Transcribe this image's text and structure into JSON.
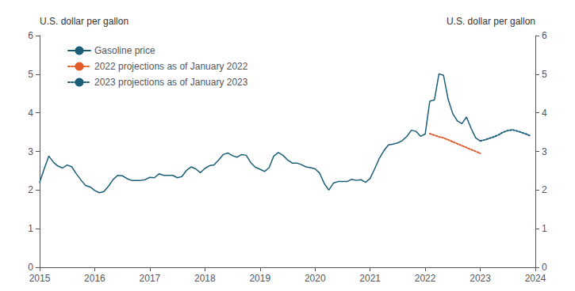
{
  "chart_data": {
    "type": "line",
    "ylabel": "U.S. dollar per gallon",
    "y2label": "U.S. dollar per gallon",
    "xlim": [
      2015.0,
      2024.0
    ],
    "xticks": [
      2015,
      2016,
      2017,
      2018,
      2019,
      2020,
      2021,
      2022,
      2023,
      2024
    ],
    "ylim": [
      0,
      6
    ],
    "yticks": [
      0,
      1,
      2,
      3,
      4,
      5,
      6
    ],
    "y2lim": [
      0,
      6
    ],
    "y2ticks": [
      0,
      1,
      2,
      3,
      4,
      5,
      6
    ],
    "grid": false,
    "legend": "upper left",
    "series": [
      {
        "name": "Gasoline price",
        "color": "#1a5e78",
        "line_style": "solid",
        "x": [
          2015.0,
          2015.083,
          2015.167,
          2015.25,
          2015.333,
          2015.417,
          2015.5,
          2015.583,
          2015.667,
          2015.75,
          2015.833,
          2015.917,
          2016.0,
          2016.083,
          2016.167,
          2016.25,
          2016.333,
          2016.417,
          2016.5,
          2016.583,
          2016.667,
          2016.75,
          2016.833,
          2016.917,
          2017.0,
          2017.083,
          2017.167,
          2017.25,
          2017.333,
          2017.417,
          2017.5,
          2017.583,
          2017.667,
          2017.75,
          2017.833,
          2017.917,
          2018.0,
          2018.083,
          2018.167,
          2018.25,
          2018.333,
          2018.417,
          2018.5,
          2018.583,
          2018.667,
          2018.75,
          2018.833,
          2018.917,
          2019.0,
          2019.083,
          2019.167,
          2019.25,
          2019.333,
          2019.417,
          2019.5,
          2019.583,
          2019.667,
          2019.75,
          2019.833,
          2019.917,
          2020.0,
          2020.083,
          2020.167,
          2020.25,
          2020.333,
          2020.417,
          2020.5,
          2020.583,
          2020.667,
          2020.75,
          2020.833,
          2020.917,
          2021.0,
          2021.083,
          2021.167,
          2021.25,
          2021.333,
          2021.417,
          2021.5,
          2021.583,
          2021.667,
          2021.75,
          2021.833,
          2021.917,
          2022.0,
          2022.083,
          2022.167,
          2022.25,
          2022.333,
          2022.417,
          2022.5,
          2022.583,
          2022.667,
          2022.75,
          2022.833,
          2022.917,
          2023.0
        ],
        "values": [
          2.2,
          2.55,
          2.88,
          2.72,
          2.62,
          2.57,
          2.65,
          2.6,
          2.42,
          2.26,
          2.12,
          2.08,
          1.99,
          1.93,
          1.96,
          2.1,
          2.27,
          2.38,
          2.37,
          2.3,
          2.25,
          2.25,
          2.25,
          2.27,
          2.33,
          2.32,
          2.42,
          2.38,
          2.38,
          2.38,
          2.32,
          2.35,
          2.51,
          2.6,
          2.55,
          2.45,
          2.56,
          2.63,
          2.65,
          2.78,
          2.92,
          2.96,
          2.89,
          2.85,
          2.92,
          2.9,
          2.71,
          2.59,
          2.54,
          2.48,
          2.58,
          2.88,
          2.97,
          2.9,
          2.78,
          2.7,
          2.7,
          2.66,
          2.6,
          2.58,
          2.55,
          2.44,
          2.17,
          2.0,
          2.18,
          2.22,
          2.22,
          2.22,
          2.28,
          2.25,
          2.27,
          2.2,
          2.3,
          2.55,
          2.82,
          3.02,
          3.17,
          3.19,
          3.22,
          3.28,
          3.39,
          3.55,
          3.52,
          3.39,
          3.45,
          4.3,
          4.33,
          5.01,
          4.97,
          4.35,
          3.98,
          3.79,
          3.72,
          3.89,
          3.6,
          3.35,
          3.27
        ]
      },
      {
        "name": "2022 projections as of January 2022",
        "color": "#e05c2a",
        "line_style": "dotted",
        "x": [
          2022.083,
          2022.167,
          2022.25,
          2022.333,
          2022.417,
          2022.5,
          2022.583,
          2022.667,
          2022.75,
          2022.833,
          2022.917,
          2023.0
        ],
        "values": [
          3.46,
          3.42,
          3.38,
          3.35,
          3.3,
          3.25,
          3.2,
          3.15,
          3.1,
          3.05,
          3.0,
          2.95
        ]
      },
      {
        "name": "2023 projections as of January 2023",
        "color": "#1a5e78",
        "line_style": "dotted",
        "x": [
          2023.0,
          2023.083,
          2023.167,
          2023.25,
          2023.333,
          2023.417,
          2023.5,
          2023.583,
          2023.667,
          2023.75,
          2023.833,
          2023.917
        ],
        "values": [
          3.27,
          3.3,
          3.34,
          3.38,
          3.43,
          3.5,
          3.54,
          3.56,
          3.53,
          3.49,
          3.45,
          3.4
        ]
      }
    ]
  }
}
